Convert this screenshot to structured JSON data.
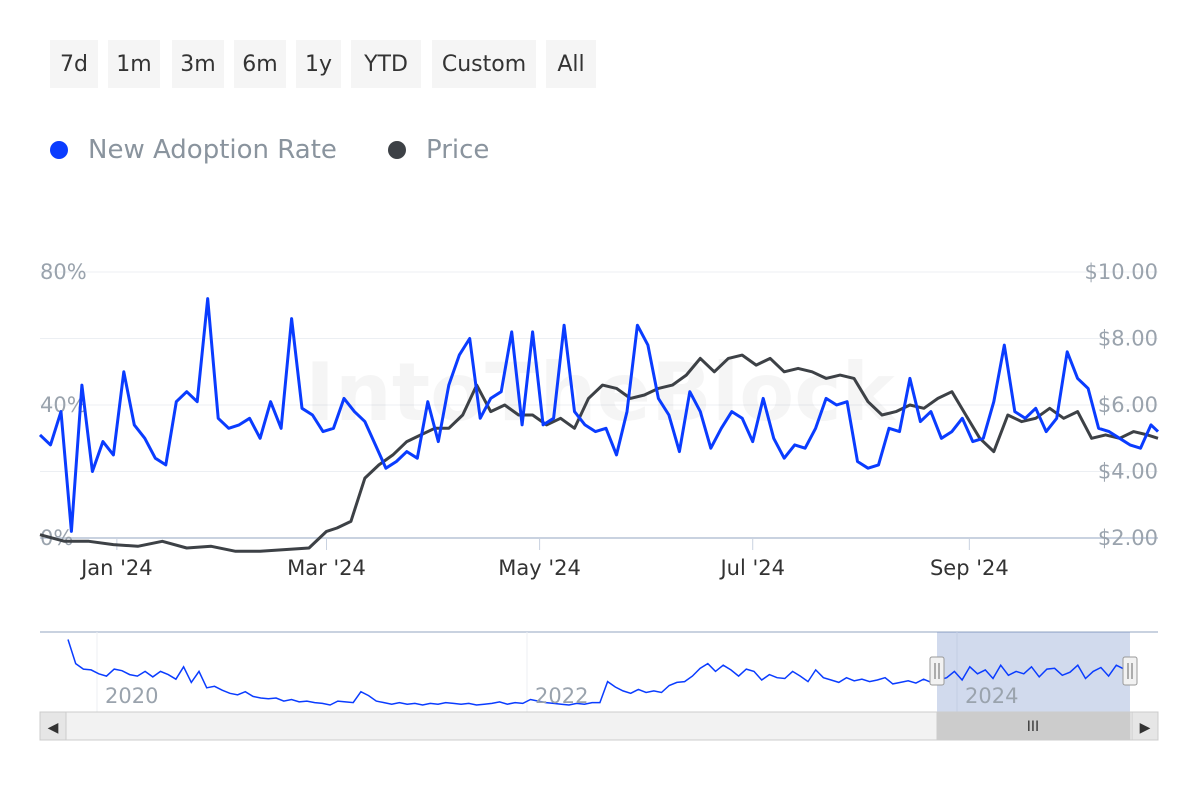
{
  "range_buttons": [
    "7d",
    "1m",
    "3m",
    "6m",
    "1y",
    "YTD",
    "Custom",
    "All"
  ],
  "watermark": "IntoTheBlock",
  "colors": {
    "adoption": "#0a3cff",
    "price": "#3d4146",
    "grid": "#eceff3",
    "axis": "#c9d2e0",
    "navigator_fill": "rgba(102,133,194,0.3)",
    "scrollbar": "#f2f2f2"
  },
  "chart_data": {
    "type": "line",
    "legend": [
      "New Adoption Rate",
      "Price"
    ],
    "x_ticks": [
      "Jan '24",
      "Mar '24",
      "May '24",
      "Jul '24",
      "Sep '24"
    ],
    "x_tick_dates": [
      "2024-01-01",
      "2024-03-01",
      "2024-05-01",
      "2024-07-01",
      "2024-09-01"
    ],
    "x_range": [
      "2023-12-10",
      "2024-10-25"
    ],
    "y_left": {
      "label": "",
      "ticks": [
        "0%",
        "40%",
        "80%"
      ],
      "range": [
        0,
        80
      ],
      "unit": "%"
    },
    "y_right": {
      "label": "",
      "ticks": [
        "$2.00",
        "$4.00",
        "$6.00",
        "$8.00",
        "$10.00"
      ],
      "range": [
        2,
        10
      ],
      "unit": "$"
    },
    "series": [
      {
        "name": "New Adoption Rate",
        "axis": "left",
        "x": [
          "2023-12-10",
          "2023-12-13",
          "2023-12-16",
          "2023-12-19",
          "2023-12-22",
          "2023-12-25",
          "2023-12-28",
          "2023-12-31",
          "2024-01-03",
          "2024-01-06",
          "2024-01-09",
          "2024-01-12",
          "2024-01-15",
          "2024-01-18",
          "2024-01-21",
          "2024-01-24",
          "2024-01-27",
          "2024-01-30",
          "2024-02-02",
          "2024-02-05",
          "2024-02-08",
          "2024-02-11",
          "2024-02-14",
          "2024-02-17",
          "2024-02-20",
          "2024-02-23",
          "2024-02-26",
          "2024-02-29",
          "2024-03-03",
          "2024-03-06",
          "2024-03-09",
          "2024-03-12",
          "2024-03-15",
          "2024-03-18",
          "2024-03-21",
          "2024-03-24",
          "2024-03-27",
          "2024-03-30",
          "2024-04-02",
          "2024-04-05",
          "2024-04-08",
          "2024-04-11",
          "2024-04-14",
          "2024-04-17",
          "2024-04-20",
          "2024-04-23",
          "2024-04-26",
          "2024-04-29",
          "2024-05-02",
          "2024-05-05",
          "2024-05-08",
          "2024-05-11",
          "2024-05-14",
          "2024-05-17",
          "2024-05-20",
          "2024-05-23",
          "2024-05-26",
          "2024-05-29",
          "2024-06-01",
          "2024-06-04",
          "2024-06-07",
          "2024-06-10",
          "2024-06-13",
          "2024-06-16",
          "2024-06-19",
          "2024-06-22",
          "2024-06-25",
          "2024-06-28",
          "2024-07-01",
          "2024-07-04",
          "2024-07-07",
          "2024-07-10",
          "2024-07-13",
          "2024-07-16",
          "2024-07-19",
          "2024-07-22",
          "2024-07-25",
          "2024-07-28",
          "2024-07-31",
          "2024-08-03",
          "2024-08-06",
          "2024-08-09",
          "2024-08-12",
          "2024-08-15",
          "2024-08-18",
          "2024-08-21",
          "2024-08-24",
          "2024-08-27",
          "2024-08-30",
          "2024-09-02",
          "2024-09-05",
          "2024-09-08",
          "2024-09-11",
          "2024-09-14",
          "2024-09-17",
          "2024-09-20",
          "2024-09-23",
          "2024-09-26",
          "2024-09-29",
          "2024-10-02",
          "2024-10-05",
          "2024-10-08",
          "2024-10-11",
          "2024-10-14",
          "2024-10-17",
          "2024-10-20",
          "2024-10-23",
          "2024-10-25"
        ],
        "values": [
          31,
          28,
          38,
          2,
          46,
          20,
          29,
          25,
          50,
          34,
          30,
          24,
          22,
          41,
          44,
          41,
          72,
          36,
          33,
          34,
          36,
          30,
          41,
          33,
          66,
          39,
          37,
          32,
          33,
          42,
          38,
          35,
          28,
          21,
          23,
          26,
          24,
          41,
          29,
          46,
          55,
          60,
          36,
          42,
          44,
          62,
          34,
          62,
          34,
          36,
          64,
          38,
          34,
          32,
          33,
          25,
          38,
          64,
          58,
          42,
          37,
          26,
          44,
          38,
          27,
          33,
          38,
          36,
          29,
          42,
          30,
          24,
          28,
          27,
          33,
          42,
          40,
          41,
          23,
          21,
          22,
          33,
          32,
          48,
          35,
          38,
          30,
          32,
          36,
          29,
          30,
          41,
          58,
          38,
          36,
          39,
          32,
          36,
          56,
          48,
          45,
          33,
          32,
          30,
          28,
          27,
          34,
          32
        ]
      },
      {
        "name": "Price",
        "axis": "right",
        "x": [
          "2023-12-10",
          "2023-12-17",
          "2023-12-24",
          "2023-12-31",
          "2024-01-07",
          "2024-01-14",
          "2024-01-21",
          "2024-01-28",
          "2024-02-04",
          "2024-02-11",
          "2024-02-18",
          "2024-02-25",
          "2024-03-01",
          "2024-03-04",
          "2024-03-08",
          "2024-03-12",
          "2024-03-16",
          "2024-03-20",
          "2024-03-24",
          "2024-03-28",
          "2024-04-01",
          "2024-04-05",
          "2024-04-09",
          "2024-04-13",
          "2024-04-17",
          "2024-04-21",
          "2024-04-25",
          "2024-04-29",
          "2024-05-03",
          "2024-05-07",
          "2024-05-11",
          "2024-05-15",
          "2024-05-19",
          "2024-05-23",
          "2024-05-27",
          "2024-05-31",
          "2024-06-04",
          "2024-06-08",
          "2024-06-12",
          "2024-06-16",
          "2024-06-20",
          "2024-06-24",
          "2024-06-28",
          "2024-07-02",
          "2024-07-06",
          "2024-07-10",
          "2024-07-14",
          "2024-07-18",
          "2024-07-22",
          "2024-07-26",
          "2024-07-30",
          "2024-08-03",
          "2024-08-07",
          "2024-08-11",
          "2024-08-15",
          "2024-08-19",
          "2024-08-23",
          "2024-08-27",
          "2024-08-31",
          "2024-09-04",
          "2024-09-08",
          "2024-09-12",
          "2024-09-16",
          "2024-09-20",
          "2024-09-24",
          "2024-09-28",
          "2024-10-02",
          "2024-10-06",
          "2024-10-10",
          "2024-10-14",
          "2024-10-18",
          "2024-10-22",
          "2024-10-25"
        ],
        "values": [
          2.1,
          1.9,
          1.9,
          1.8,
          1.75,
          1.9,
          1.7,
          1.75,
          1.6,
          1.6,
          1.65,
          1.7,
          2.2,
          2.3,
          2.5,
          3.8,
          4.2,
          4.5,
          4.9,
          5.1,
          5.3,
          5.3,
          5.7,
          6.6,
          5.8,
          6.0,
          5.7,
          5.7,
          5.4,
          5.6,
          5.3,
          6.2,
          6.6,
          6.5,
          6.2,
          6.3,
          6.5,
          6.6,
          6.9,
          7.4,
          7.0,
          7.4,
          7.5,
          7.2,
          7.4,
          7.0,
          7.1,
          7.0,
          6.8,
          6.9,
          6.8,
          6.1,
          5.7,
          5.8,
          6.0,
          5.9,
          6.2,
          6.4,
          5.7,
          5.0,
          4.6,
          5.7,
          5.5,
          5.6,
          5.9,
          5.6,
          5.8,
          5.0,
          5.1,
          5.0,
          5.2,
          5.1,
          5.0
        ]
      }
    ]
  },
  "navigator": {
    "labels": [
      "2020",
      "2022",
      "2024"
    ],
    "values": [
      93,
      62,
      55,
      54,
      49,
      46,
      55,
      53,
      48,
      46,
      52,
      45,
      52,
      48,
      42,
      58,
      38,
      52,
      31,
      33,
      28,
      24,
      22,
      26,
      20,
      18,
      17,
      18,
      14,
      16,
      13,
      14,
      12,
      11,
      9,
      14,
      13,
      12,
      26,
      21,
      14,
      12,
      10,
      12,
      10,
      11,
      9,
      11,
      10,
      12,
      11,
      10,
      11,
      9,
      10,
      11,
      13,
      10,
      12,
      11,
      16,
      14,
      12,
      11,
      10,
      9,
      11,
      10,
      12,
      12,
      39,
      32,
      27,
      24,
      29,
      25,
      27,
      25,
      34,
      38,
      39,
      46,
      56,
      62,
      52,
      60,
      54,
      46,
      55,
      52,
      41,
      48,
      44,
      43,
      52,
      46,
      39,
      54,
      44,
      41,
      38,
      44,
      40,
      42,
      39,
      41,
      44,
      36,
      38,
      40,
      37,
      42,
      38,
      41,
      44,
      52,
      41,
      58,
      49,
      54,
      43,
      60,
      47,
      52,
      49,
      58,
      45,
      55,
      56,
      47,
      51,
      60,
      43,
      52,
      57,
      46,
      60,
      55
    ]
  },
  "scrollbar": {
    "grip": "III",
    "left_arrow": "◀",
    "right_arrow": "▶"
  }
}
